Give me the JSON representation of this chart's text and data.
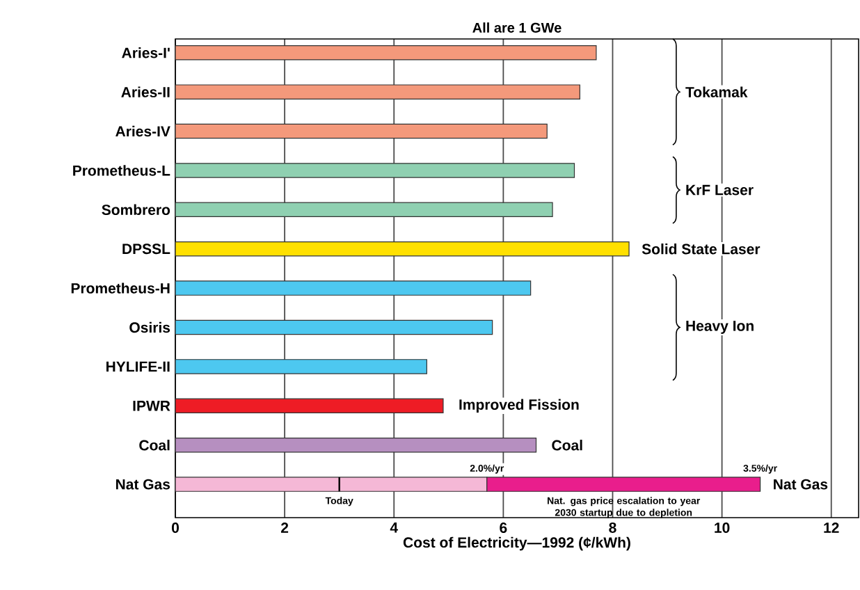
{
  "chart_data": {
    "type": "bar",
    "orientation": "horizontal",
    "stacked": true,
    "title": "All are 1 GWe",
    "xlabel": "Cost of Electricity—1992 (¢/kWh)",
    "categories": [
      "Aries-I'",
      "Aries-II",
      "Aries-IV",
      "Prometheus-L",
      "Sombrero",
      "DPSSL",
      "Prometheus-H",
      "Osiris",
      "HYLIFE-II",
      "IPWR",
      "Coal",
      "Nat Gas"
    ],
    "series": [
      {
        "colors": [
          "#f4997b",
          "#f4997b",
          "#f4997b",
          "#8fd0b1",
          "#8fd0b1",
          "#ffe000",
          "#4dc8f0",
          "#4dc8f0",
          "#4dc8f0",
          "#ee1c25",
          "#b68fc0",
          "#f5b8d6"
        ],
        "values": [
          7.7,
          7.4,
          6.8,
          7.3,
          6.9,
          8.3,
          6.5,
          5.8,
          4.6,
          4.9,
          6.6,
          5.7
        ]
      },
      {
        "color": "#e91e8c",
        "values": [
          null,
          null,
          null,
          null,
          null,
          null,
          null,
          null,
          null,
          null,
          null,
          5.0
        ]
      }
    ],
    "xlim": [
      0,
      12.5
    ],
    "xticks": [
      0,
      2,
      4,
      6,
      8,
      10,
      12
    ],
    "grid": "x",
    "annotations": [
      "Tokamak",
      "KrF Laser",
      "Heavy Ion",
      "Solid State Laser",
      "Improved Fission",
      "Coal",
      "Nat Gas",
      {
        "text": "Today",
        "x": 3,
        "y": "Nat Gas"
      },
      {
        "text": "2.0%/yr",
        "x": 5.7,
        "y": "Nat Gas"
      },
      {
        "text": "3.5%/yr",
        "x": 10.7,
        "y": "Nat Gas"
      },
      {
        "text": "Nat. gas price escalation to year 2030 startup due to depletion",
        "x": 8.2,
        "y": "Nat Gas"
      }
    ]
  }
}
